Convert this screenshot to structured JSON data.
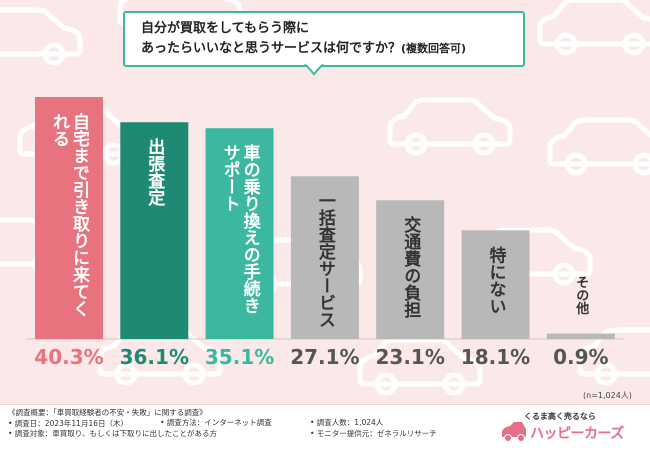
{
  "title": {
    "line1": "自分が買取をしてもらう際に",
    "line2": "あったらいいなと思うサービスは何ですか？",
    "note": "(複数回答可)"
  },
  "chart_data": {
    "type": "bar",
    "categories": [
      "自宅まで引き取りに来てくれる",
      "出張査定",
      "車の乗り換えの手続きサポート",
      "一括査定サービス",
      "交通費の負担",
      "特にない",
      "その他"
    ],
    "values": [
      40.3,
      36.1,
      35.1,
      27.1,
      23.1,
      18.1,
      0.9
    ],
    "labels": [
      "40.3%",
      "36.1%",
      "35.1%",
      "27.1%",
      "23.1%",
      "18.1%",
      "0.9%"
    ],
    "ylim": [
      0,
      42
    ],
    "colors": [
      "#e8737f",
      "#1e8a73",
      "#3bb89f",
      "#b8b8b8",
      "#b8b8b8",
      "#b8b8b8",
      "#b8b8b8"
    ],
    "label_colors": [
      "#e8737f",
      "#1e8a73",
      "#3bb89f",
      "#555555",
      "#555555",
      "#555555",
      "#555555"
    ],
    "text_colors": [
      "#ffffff",
      "#ffffff",
      "#ffffff",
      "#333333",
      "#333333",
      "#333333",
      "#333333"
    ]
  },
  "sample_size": "(n=1,024人)",
  "footer": {
    "left": [
      "《調査概要：「車買取経験者の不安・失敗」に関する調査》",
      "• 調査日：2023年11月16日（木）",
      "• 調査対象：車買取り、もしくは下取りに出したことがある方"
    ],
    "mid": [
      "• 調査方法：インターネット調査"
    ],
    "right": [
      "• 調査人数：1,024人",
      "• モニター提供元：ゼネラルリサーチ"
    ],
    "logo_tagline": "くるま高く売るなら",
    "logo_name": "ハッピーカーズ"
  }
}
